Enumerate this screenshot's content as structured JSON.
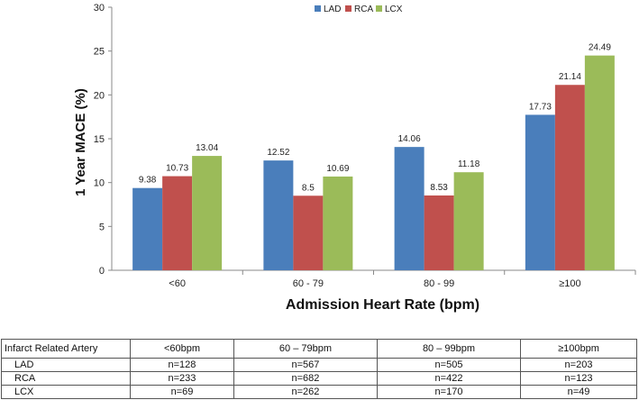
{
  "chart_data": {
    "type": "bar",
    "categories": [
      "<60",
      "60 - 79",
      "80 - 99",
      "≥100"
    ],
    "series": [
      {
        "name": "LAD",
        "color": "#4A7EBB",
        "values": [
          9.38,
          12.52,
          14.06,
          17.73
        ],
        "labels": [
          "9.38",
          "12.52",
          "14.06",
          "17.73"
        ]
      },
      {
        "name": "RCA",
        "color": "#C0504D",
        "values": [
          10.73,
          8.5,
          8.53,
          21.14
        ],
        "labels": [
          "10.73",
          "8.5",
          "8.53",
          "21.14"
        ]
      },
      {
        "name": "LCX",
        "color": "#9BBB59",
        "values": [
          13.04,
          10.69,
          11.18,
          24.49
        ],
        "labels": [
          "13.04",
          "10.69",
          "11.18",
          "24.49"
        ]
      }
    ],
    "xlabel": "Admission Heart Rate (bpm)",
    "ylabel": "1 Year MACE (%)",
    "ylim": [
      0,
      30
    ],
    "yticks": [
      0,
      5,
      10,
      15,
      20,
      25,
      30
    ],
    "grid": false,
    "legend": "top-center"
  },
  "table": {
    "headers": [
      "Infarct Related Artery",
      "<60bpm",
      "60 – 79bpm",
      "80 – 99bpm",
      "≥100bpm"
    ],
    "rows": [
      {
        "artery": "LAD",
        "cells": [
          "n=128",
          "n=567",
          "n=505",
          "n=203"
        ]
      },
      {
        "artery": "RCA",
        "cells": [
          "n=233",
          "n=682",
          "n=422",
          "n=123"
        ]
      },
      {
        "artery": "LCX",
        "cells": [
          "n=69",
          "n=262",
          "n=170",
          "n=49"
        ]
      }
    ]
  }
}
